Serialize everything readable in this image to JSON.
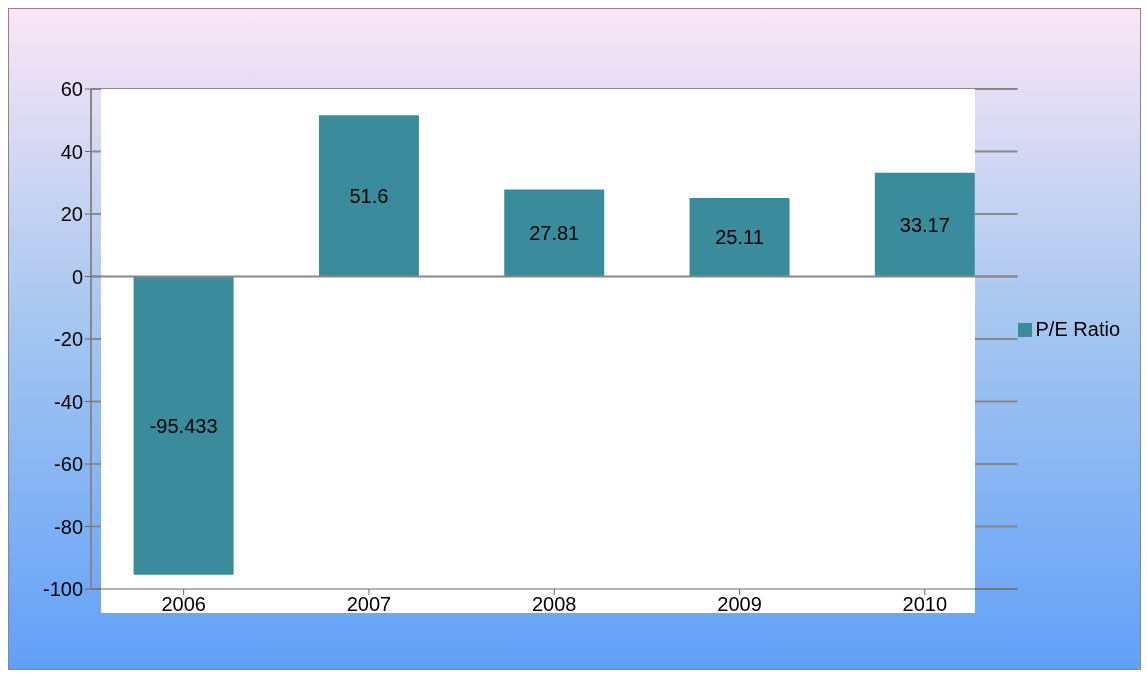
{
  "chart_data": {
    "type": "bar",
    "categories": [
      "2006",
      "2007",
      "2008",
      "2009",
      "2010"
    ],
    "series": [
      {
        "name": "P/E Ratio",
        "color": "#3a8c9c",
        "values": [
          -95.433,
          51.6,
          27.81,
          25.11,
          33.17
        ]
      }
    ],
    "ylim": [
      -100,
      60
    ],
    "yticks": [
      -100,
      -80,
      -60,
      -40,
      -20,
      0,
      20,
      40,
      60
    ],
    "grid": "y",
    "legend": "right",
    "data_labels": true
  }
}
